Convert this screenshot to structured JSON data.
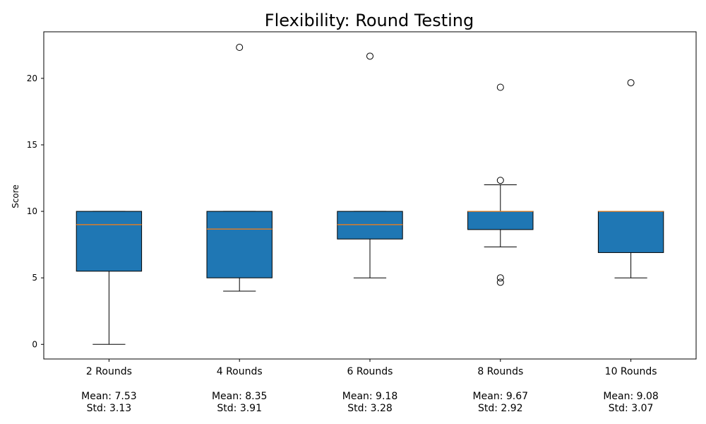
{
  "chart_data": {
    "type": "boxplot",
    "title": "Flexibility: Round Testing",
    "xlabel": "",
    "ylabel": "Score",
    "ylim": [
      -1.1,
      23.5
    ],
    "yticks": [
      0,
      5,
      10,
      15,
      20
    ],
    "grid": false,
    "box_color": "#1f77b4",
    "median_color": "#ff7f0e",
    "categories": [
      {
        "label": "2 Rounds",
        "mean_text": "Mean: 7.53",
        "std_text": "Std: 3.13",
        "whisker_low": 0,
        "q1": 5.5,
        "median": 9,
        "q3": 10,
        "whisker_high": 10,
        "outliers": []
      },
      {
        "label": "4 Rounds",
        "mean_text": "Mean: 8.35",
        "std_text": "Std: 3.91",
        "whisker_low": 4,
        "q1": 5,
        "median": 8.67,
        "q3": 10,
        "whisker_high": 10,
        "outliers": [
          22.33
        ]
      },
      {
        "label": "6 Rounds",
        "mean_text": "Mean: 9.18",
        "std_text": "Std: 3.28",
        "whisker_low": 5,
        "q1": 7.92,
        "median": 9,
        "q3": 10,
        "whisker_high": 10,
        "outliers": [
          21.67
        ]
      },
      {
        "label": "8 Rounds",
        "mean_text": "Mean: 9.67",
        "std_text": "Std: 2.92",
        "whisker_low": 7.33,
        "q1": 8.63,
        "median": 10,
        "q3": 10,
        "whisker_high": 12,
        "outliers": [
          19.33,
          12.33,
          5,
          4.67
        ]
      },
      {
        "label": "10 Rounds",
        "mean_text": "Mean: 9.08",
        "std_text": "Std: 3.07",
        "whisker_low": 5,
        "q1": 6.9,
        "median": 10,
        "q3": 10,
        "whisker_high": 10,
        "outliers": [
          19.67
        ]
      }
    ]
  }
}
